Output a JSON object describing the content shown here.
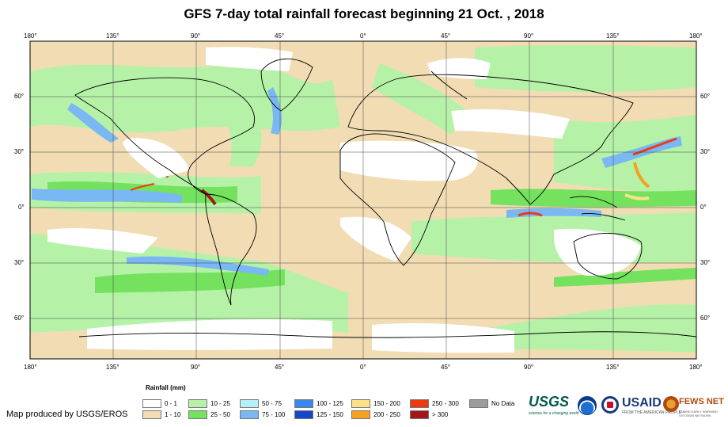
{
  "title": "GFS 7-day total rainfall forecast beginning 21 Oct. , 2018",
  "longitude_labels": [
    "180°",
    "135°",
    "90°",
    "45°",
    "0°",
    "45°",
    "90°",
    "135°",
    "180°"
  ],
  "latitude_labels": [
    "60°",
    "30°",
    "0°",
    "30°",
    "60°"
  ],
  "legend": {
    "title": "Rainfall (mm)",
    "classes": [
      {
        "label": "0 - 1",
        "color": "#ffffff"
      },
      {
        "label": "1 - 10",
        "color": "#f1dcb4"
      },
      {
        "label": "10 - 25",
        "color": "#b5f2a8"
      },
      {
        "label": "25 - 50",
        "color": "#74e25e"
      },
      {
        "label": "50 - 75",
        "color": "#b3f0f7"
      },
      {
        "label": "75 - 100",
        "color": "#79b8f2"
      },
      {
        "label": "100 - 125",
        "color": "#3b86ee"
      },
      {
        "label": "125 - 150",
        "color": "#1548c8"
      },
      {
        "label": "150 - 200",
        "color": "#fde187"
      },
      {
        "label": "200 - 250",
        "color": "#f7a020"
      },
      {
        "label": "250 - 300",
        "color": "#ee3a12"
      },
      {
        "label": "> 300",
        "color": "#a5161a"
      },
      {
        "label": "No Data",
        "color": "#9b9b9b"
      }
    ]
  },
  "credit": "Map produced by USGS/EROS",
  "logos": {
    "usgs": "USGS",
    "usgs_tagline": "science for a changing world",
    "usaid": "USAID",
    "usaid_tagline": "FROM THE AMERICAN PEOPLE",
    "fews": "FEWS NET",
    "fews_tagline": "FAMINE EARLY WARNING SYSTEMS NETWORK"
  }
}
